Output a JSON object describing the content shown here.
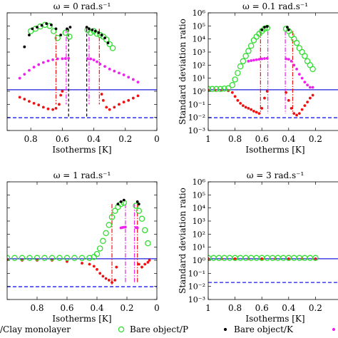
{
  "figure": {
    "legend": {
      "entries": [
        {
          "label": "/Clay monolayer",
          "marker": "none"
        },
        {
          "label": "Bare object/P",
          "marker": "circle-open",
          "color": "#33dd33"
        },
        {
          "label": "Bare object/K",
          "marker": "dot",
          "color": "#000000"
        },
        {
          "label": "",
          "marker": "dot",
          "color": "#ee22ee"
        }
      ]
    },
    "colors": {
      "clay_monolayer": "#1f1fdd",
      "bare_p": "#33dd33",
      "bare_k": "#000000",
      "magenta_series": "#ee22ee",
      "red_series": "#ee1111",
      "dashed_reference": "#1f1fdd"
    }
  },
  "chart_data": [
    {
      "type": "scatter",
      "title": "ω = 0 rad.s⁻¹",
      "xlabel": "Isotherms [K]",
      "ylabel": "",
      "x_reversed": true,
      "xlim": [
        0,
        0.95
      ],
      "ylim_log10": [
        -3,
        6
      ],
      "x_ticks": [
        0.8,
        0.6,
        0.4,
        0.2,
        0
      ],
      "x_tick_labels": [
        "0.8",
        "0.6",
        "0.4",
        "0.2",
        "0"
      ],
      "series": [
        {
          "key": "bare_p",
          "marker": "circle-open",
          "x": [
            0.8,
            0.77,
            0.74,
            0.71,
            0.68,
            0.655,
            0.63,
            0.58,
            0.555,
            0.44,
            0.42,
            0.4,
            0.38,
            0.36,
            0.34,
            0.32,
            0.3,
            0.28
          ],
          "y": [
            40000,
            60000,
            90000,
            120000,
            100000,
            40000,
            12000,
            30000,
            15000,
            50000,
            30000,
            40000,
            25000,
            20000,
            15000,
            9000,
            4000,
            2000
          ]
        },
        {
          "key": "bare_k",
          "marker": "dot",
          "x": [
            0.84,
            0.81,
            0.79,
            0.76,
            0.73,
            0.7,
            0.67,
            0.64,
            0.61,
            0.57,
            0.55,
            0.445,
            0.43,
            0.41,
            0.39,
            0.37,
            0.35,
            0.33,
            0.31
          ],
          "y": [
            2500,
            20000,
            60000,
            80000,
            110000,
            150000,
            120000,
            60000,
            20000,
            60000,
            80000,
            80000,
            60000,
            50000,
            40000,
            30000,
            20000,
            12000,
            5000
          ]
        },
        {
          "key": "magenta_series",
          "marker": "dot",
          "x": [
            0.87,
            0.84,
            0.81,
            0.78,
            0.75,
            0.72,
            0.69,
            0.66,
            0.63,
            0.6,
            0.58,
            0.56,
            0.44,
            0.42,
            0.4,
            0.38,
            0.36,
            0.33,
            0.3,
            0.27,
            0.24,
            0.21,
            0.18,
            0.15,
            0.12
          ],
          "y": [
            10,
            20,
            40,
            70,
            110,
            160,
            210,
            260,
            300,
            310,
            320,
            330,
            310,
            300,
            250,
            180,
            120,
            80,
            50,
            35,
            25,
            18,
            12,
            8,
            5
          ]
        },
        {
          "key": "red_series",
          "marker": "dot",
          "x": [
            0.87,
            0.84,
            0.81,
            0.78,
            0.75,
            0.72,
            0.69,
            0.66,
            0.64,
            0.62,
            0.61,
            0.6,
            0.35,
            0.34,
            0.32,
            0.3,
            0.27,
            0.24,
            0.21,
            0.18,
            0.15,
            0.12
          ],
          "y": [
            0.35,
            0.25,
            0.17,
            0.12,
            0.09,
            0.06,
            0.045,
            0.04,
            0.05,
            0.1,
            0.5,
            1.0,
            0.6,
            0.2,
            0.06,
            0.04,
            0.06,
            0.1,
            0.15,
            0.2,
            0.3,
            0.45
          ]
        }
      ],
      "reference_lines": [
        {
          "key": "clay_monolayer",
          "style": "solid",
          "y": 1.3
        },
        {
          "key": "dashed_reference",
          "style": "dashed",
          "y": 0.0095
        }
      ],
      "vertical_lines": [
        {
          "x": 0.64,
          "color": "red",
          "style": "dashdot",
          "y_range": [
            0.1,
            60000
          ]
        },
        {
          "x": 0.575,
          "color": "magenta",
          "style": "dashdot",
          "y_range": [
            0.1,
            60000
          ]
        },
        {
          "x": 0.56,
          "color": "black",
          "style": "dashed",
          "y_range": [
            0.01,
            60000
          ]
        },
        {
          "x": 0.445,
          "color": "black",
          "style": "dashed",
          "y_range": [
            0.01,
            60000
          ]
        },
        {
          "x": 0.43,
          "color": "magenta",
          "style": "dashdot",
          "y_range": [
            0.1,
            60000
          ]
        },
        {
          "x": 0.365,
          "color": "red",
          "style": "dashdot",
          "y_range": [
            0.1,
            60000
          ]
        }
      ]
    },
    {
      "type": "scatter",
      "title": "ω = 0.1 rad.s⁻¹",
      "xlabel": "Isotherms [K]",
      "ylabel": "Standard deviation ratio",
      "x_reversed": true,
      "xlim": [
        0,
        1
      ],
      "ylim_log10": [
        -3,
        6
      ],
      "x_ticks": [
        1,
        0.8,
        0.6,
        0.4,
        0.2
      ],
      "x_tick_labels": [
        "1",
        "0.8",
        "0.6",
        "0.4",
        "0.2"
      ],
      "y_tick_labels": [
        "10⁻³",
        "10⁻²",
        "10⁻¹",
        "10⁰",
        "10¹",
        "10²",
        "10³",
        "10⁴",
        "10⁵",
        "10⁶"
      ],
      "series": [
        {
          "key": "bare_p",
          "marker": "circle-open",
          "x": [
            1.0,
            0.97,
            0.94,
            0.91,
            0.88,
            0.85,
            0.82,
            0.8,
            0.78,
            0.76,
            0.74,
            0.72,
            0.7,
            0.68,
            0.66,
            0.64,
            0.62,
            0.6,
            0.58,
            0.56,
            0.42,
            0.4,
            0.38,
            0.36,
            0.34,
            0.32,
            0.3,
            0.28,
            0.26,
            0.24,
            0.22
          ],
          "y": [
            1.5,
            1.5,
            1.5,
            1.5,
            1.6,
            1.7,
            3,
            8,
            25,
            80,
            200,
            500,
            1200,
            3000,
            8000,
            15000,
            25000,
            40000,
            60000,
            70000,
            60000,
            40000,
            20000,
            10000,
            5000,
            2000,
            1000,
            500,
            200,
            100,
            50
          ]
        },
        {
          "key": "bare_k",
          "marker": "dot",
          "x": [
            0.6,
            0.58,
            0.56,
            0.41,
            0.4
          ],
          "y": [
            50000,
            80000,
            90000,
            80000,
            50000
          ]
        },
        {
          "key": "magenta_series",
          "marker": "dot",
          "x": [
            0.7,
            0.68,
            0.66,
            0.64,
            0.62,
            0.6,
            0.58,
            0.56,
            0.42,
            0.4,
            0.38,
            0.36,
            0.34,
            0.32,
            0.3,
            0.28,
            0.26,
            0.24,
            0.22
          ],
          "y": [
            200,
            220,
            240,
            260,
            280,
            300,
            320,
            330,
            300,
            280,
            200,
            100,
            50,
            20,
            10,
            5,
            3,
            2,
            2
          ]
        },
        {
          "key": "red_series",
          "marker": "dot",
          "x": [
            1.0,
            0.95,
            0.9,
            0.85,
            0.82,
            0.8,
            0.78,
            0.76,
            0.74,
            0.72,
            0.7,
            0.68,
            0.66,
            0.64,
            0.62,
            0.6,
            0.58,
            0.56,
            0.42,
            0.4,
            0.38,
            0.36,
            0.34,
            0.32,
            0.3,
            0.28,
            0.26,
            0.24,
            0.22
          ],
          "y": [
            1.2,
            1.2,
            1.2,
            1.1,
            0.8,
            0.4,
            0.2,
            0.12,
            0.08,
            0.06,
            0.05,
            0.04,
            0.03,
            0.025,
            0.02,
            0.05,
            0.3,
            1.0,
            0.8,
            0.2,
            0.05,
            0.02,
            0.015,
            0.02,
            0.04,
            0.08,
            0.15,
            0.3,
            0.5
          ]
        }
      ],
      "reference_lines": [
        {
          "key": "clay_monolayer",
          "style": "solid",
          "y": 1.3
        },
        {
          "key": "dashed_reference",
          "style": "dashed",
          "y": 0.0095
        }
      ],
      "vertical_lines": [
        {
          "x": 0.61,
          "color": "red",
          "style": "dashdot",
          "y_range": [
            0.02,
            40000
          ]
        },
        {
          "x": 0.555,
          "color": "magenta",
          "style": "dashdot",
          "y_range": [
            0.02,
            40000
          ]
        },
        {
          "x": 0.425,
          "color": "magenta",
          "style": "dashdot",
          "y_range": [
            0.02,
            40000
          ]
        },
        {
          "x": 0.37,
          "color": "red",
          "style": "dashdot",
          "y_range": [
            0.02,
            40000
          ]
        }
      ]
    },
    {
      "type": "scatter",
      "title": "ω = 1 rad.s⁻¹",
      "xlabel": "Isotherms [K]",
      "ylabel": "",
      "x_reversed": true,
      "xlim": [
        0,
        1
      ],
      "ylim_log10": [
        -3,
        6
      ],
      "x_ticks": [
        0.8,
        0.6,
        0.4,
        0.2,
        0
      ],
      "x_tick_labels": [
        "0.8",
        "0.6",
        "0.4",
        "0.2",
        "0"
      ],
      "series": [
        {
          "key": "bare_p",
          "marker": "circle-open",
          "x": [
            1.0,
            0.95,
            0.9,
            0.85,
            0.8,
            0.75,
            0.7,
            0.65,
            0.6,
            0.55,
            0.5,
            0.45,
            0.42,
            0.4,
            0.38,
            0.36,
            0.34,
            0.32,
            0.3,
            0.28,
            0.26,
            0.24,
            0.22,
            0.14,
            0.12,
            0.1,
            0.08,
            0.06
          ],
          "y": [
            1.5,
            1.5,
            1.5,
            1.5,
            1.5,
            1.5,
            1.5,
            1.5,
            1.5,
            1.5,
            1.5,
            1.5,
            1.8,
            3,
            8,
            30,
            120,
            500,
            2000,
            6000,
            12000,
            20000,
            25000,
            15000,
            6000,
            1500,
            200,
            20
          ]
        },
        {
          "key": "bare_k",
          "marker": "dot",
          "x": [
            0.26,
            0.24,
            0.22,
            0.13,
            0.12
          ],
          "y": [
            20000,
            30000,
            40000,
            30000,
            20000
          ]
        },
        {
          "key": "magenta_series",
          "marker": "dot",
          "x": [
            0.24,
            0.23,
            0.22,
            0.21,
            0.14,
            0.13
          ],
          "y": [
            300,
            320,
            340,
            350,
            320,
            300
          ]
        },
        {
          "key": "red_series",
          "marker": "dot",
          "x": [
            1.0,
            0.9,
            0.8,
            0.7,
            0.6,
            0.5,
            0.45,
            0.42,
            0.4,
            0.38,
            0.36,
            0.34,
            0.32,
            0.3,
            0.28,
            0.27,
            0.12,
            0.1,
            0.08,
            0.06,
            0.05
          ],
          "y": [
            1.1,
            1.0,
            1.0,
            1.0,
            0.8,
            0.6,
            0.5,
            0.35,
            0.2,
            0.1,
            0.06,
            0.04,
            0.03,
            0.02,
            0.03,
            0.3,
            0.5,
            0.3,
            0.5,
            0.7,
            1.0
          ]
        }
      ],
      "reference_lines": [
        {
          "key": "clay_monolayer",
          "style": "solid",
          "y": 1.3
        },
        {
          "key": "dashed_reference",
          "style": "dashed",
          "y": 0.0095
        }
      ],
      "vertical_lines": [
        {
          "x": 0.3,
          "color": "red",
          "style": "dashdot",
          "y_range": [
            0.01,
            20000
          ]
        },
        {
          "x": 0.21,
          "color": "magenta",
          "style": "dashdot",
          "y_range": [
            0.02,
            20000
          ]
        },
        {
          "x": 0.15,
          "color": "magenta",
          "style": "dashdot",
          "y_range": [
            0.02,
            20000
          ]
        },
        {
          "x": 0.13,
          "color": "red",
          "style": "dashdot",
          "y_range": [
            0.02,
            20000
          ]
        }
      ]
    },
    {
      "type": "scatter",
      "title": "ω = 3 rad.s⁻¹",
      "xlabel": "Isotherms [K]",
      "ylabel": "Standard deviation ratio",
      "x_reversed": true,
      "xlim": [
        0,
        1
      ],
      "ylim_log10": [
        -3,
        6
      ],
      "x_ticks": [
        1,
        0.8,
        0.6,
        0.4,
        0.2
      ],
      "x_tick_labels": [
        "1",
        "0.8",
        "0.6",
        "0.4",
        "0.2"
      ],
      "y_tick_labels": [
        "10⁻³",
        "10⁻²",
        "10⁻¹",
        "10⁰",
        "10¹",
        "10²",
        "10³",
        "10⁴",
        "10⁵",
        "10⁶"
      ],
      "series": [
        {
          "key": "bare_p",
          "marker": "circle-open",
          "x": [
            1.0,
            0.96,
            0.92,
            0.88,
            0.84,
            0.8,
            0.76,
            0.72,
            0.68,
            0.64,
            0.6,
            0.56,
            0.52,
            0.48,
            0.44,
            0.4,
            0.36,
            0.32,
            0.28,
            0.24,
            0.2
          ],
          "y": [
            1.5,
            1.5,
            1.5,
            1.5,
            1.5,
            1.5,
            1.5,
            1.5,
            1.5,
            1.5,
            1.5,
            1.5,
            1.5,
            1.5,
            1.5,
            1.5,
            1.5,
            1.5,
            1.5,
            1.5,
            1.5
          ]
        },
        {
          "key": "red_series",
          "marker": "dot",
          "x": [
            1.0,
            0.9,
            0.8,
            0.7,
            0.6,
            0.5,
            0.4,
            0.3,
            0.2
          ],
          "y": [
            1.3,
            1.3,
            1.3,
            1.3,
            1.3,
            1.3,
            1.3,
            1.3,
            1.3
          ]
        }
      ],
      "reference_lines": [
        {
          "key": "clay_monolayer",
          "style": "solid",
          "y": 1.3
        },
        {
          "key": "dashed_reference",
          "style": "dashed",
          "y": 0.02
        }
      ],
      "vertical_lines": []
    }
  ]
}
